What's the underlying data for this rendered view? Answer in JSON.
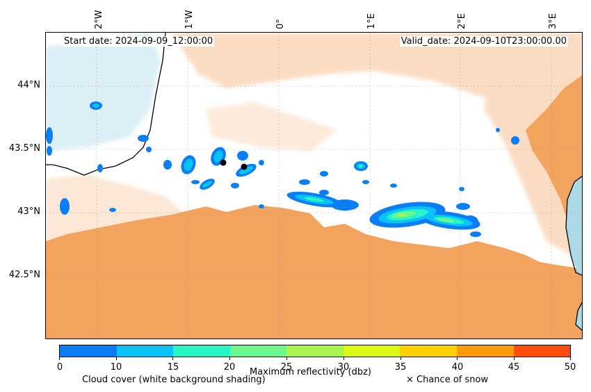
{
  "header": {
    "start_date": "Start date: 2024-09-09_12:00:00",
    "valid_date": "Valid_date: 2024-09-10T23:00:00.00"
  },
  "axes": {
    "lon_labels": [
      "2°W",
      "1°W",
      "0°",
      "1°E",
      "2°E",
      "3°E"
    ],
    "lat_labels": [
      "44°N",
      "43.5°N",
      "43°N",
      "42.5°N"
    ]
  },
  "colorbar": {
    "title": "Maximum reflectivity (dbz)",
    "ticks": [
      "0",
      "10",
      "15",
      "20",
      "25",
      "30",
      "35",
      "40",
      "45",
      "50"
    ],
    "colors": [
      "#0a7ef5",
      "#0ac2f7",
      "#27f5c8",
      "#6cf78c",
      "#a8f552",
      "#def714",
      "#ffcf00",
      "#ff9a0a",
      "#ff4e0a"
    ]
  },
  "notes": {
    "cloud_cover": "Cloud cover (white background shading)",
    "snow": "× Chance of snow"
  },
  "colors": {
    "sea": "#add8e6",
    "cloud_orange": "#f2a35e",
    "cloud_light": "#fbd9bd",
    "cloud_blue_light": "#d6ecf5"
  }
}
